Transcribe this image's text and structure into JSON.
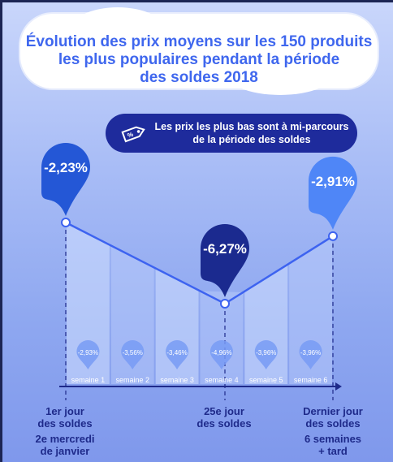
{
  "title": {
    "line1": "Évolution des prix moyens sur les 150 produits",
    "line2": "les plus populaires pendant la période",
    "line3": "des soldes 2018"
  },
  "callout": {
    "icon": "price-tag-icon",
    "line1": "Les prix les plus bas sont à mi-parcours",
    "line2": "de la période des soldes"
  },
  "colors": {
    "title": "#3f67ee",
    "callout_bg": "#1e2b9c",
    "pin_blue": "#2457d6",
    "pin_light": "#4f86f7",
    "pin_dark": "#1b2a8f",
    "line": "#3d63f0"
  },
  "chart_data": {
    "type": "line",
    "title": "Évolution des prix moyens sur les 150 produits les plus populaires pendant la période des soldes 2018",
    "xlabel": "",
    "ylabel": "",
    "points": [
      {
        "x": "1er jour des soldes",
        "value": -2.23,
        "label": "-2,23%"
      },
      {
        "x": "25e jour des soldes",
        "value": -6.27,
        "label": "-6,27%"
      },
      {
        "x": "Dernier jour des soldes",
        "value": -2.91,
        "label": "-2,91%"
      }
    ],
    "weekly": {
      "categories": [
        "semaine 1",
        "semaine 2",
        "semaine 3",
        "semaine 4",
        "semaine 5",
        "semaine 6"
      ],
      "values": [
        -2.93,
        -3.56,
        -3.46,
        -4.96,
        -3.96,
        -3.96
      ],
      "labels": [
        "-2,93%",
        "-3,56%",
        "-3,46%",
        "-4,96%",
        "-3,96%",
        "-3,96%"
      ]
    },
    "grid": false,
    "legend": "none"
  },
  "bottom": [
    {
      "line1": "1er jour",
      "line2": "des soldes",
      "sub1": "2e mercredi",
      "sub2": "de janvier"
    },
    {
      "line1": "25e jour",
      "line2": "des soldes",
      "sub1": "",
      "sub2": ""
    },
    {
      "line1": "Dernier jour",
      "line2": "des soldes",
      "sub1": "6 semaines",
      "sub2": "+ tard"
    }
  ]
}
